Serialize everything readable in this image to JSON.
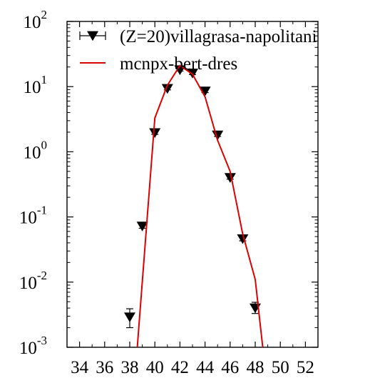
{
  "chart_data": {
    "type": "scatter",
    "title": "",
    "xlabel": "",
    "ylabel": "",
    "xlim": [
      33,
      53
    ],
    "ylog": true,
    "ylim": [
      0.001,
      100
    ],
    "grid": false,
    "legend_position": "top-right",
    "x_ticks": [
      34,
      36,
      38,
      40,
      42,
      44,
      46,
      48,
      50,
      52
    ],
    "y_ticks": [
      {
        "value": 0.001,
        "mantissa": "10",
        "exp": "-3"
      },
      {
        "value": 0.01,
        "mantissa": "10",
        "exp": "-2"
      },
      {
        "value": 0.1,
        "mantissa": "10",
        "exp": "-1"
      },
      {
        "value": 1,
        "mantissa": "10",
        "exp": "0"
      },
      {
        "value": 10,
        "mantissa": "10",
        "exp": "1"
      },
      {
        "value": 100,
        "mantissa": "10",
        "exp": "2"
      }
    ],
    "series": [
      {
        "name": "(Z=20)villagrasa-napolitani",
        "kind": "points-with-errors",
        "marker": "triangle-down",
        "color": "#000000",
        "x": [
          38,
          39,
          40,
          41,
          42,
          43,
          44,
          45,
          46,
          47,
          48
        ],
        "y": [
          0.0029,
          0.072,
          1.95,
          9.3,
          18.0,
          16.0,
          8.5,
          1.8,
          0.4,
          0.046,
          0.004
        ],
        "y_err_low": [
          0.002,
          0.067,
          1.85,
          8.9,
          17.3,
          15.3,
          8.1,
          1.72,
          0.38,
          0.043,
          0.0033
        ],
        "y_err_high": [
          0.0039,
          0.078,
          2.05,
          9.7,
          18.8,
          16.7,
          8.9,
          1.9,
          0.42,
          0.05,
          0.0049
        ]
      },
      {
        "name": "mcnpx-bert-dres",
        "kind": "line",
        "color": "#dd0000",
        "x": [
          38.6,
          40,
          41,
          42,
          43,
          44,
          45,
          46,
          47,
          48,
          48.6
        ],
        "y": [
          0.001,
          3.3,
          10.5,
          21.0,
          15.5,
          7.0,
          1.5,
          0.5,
          0.055,
          0.011,
          0.001
        ]
      }
    ]
  }
}
